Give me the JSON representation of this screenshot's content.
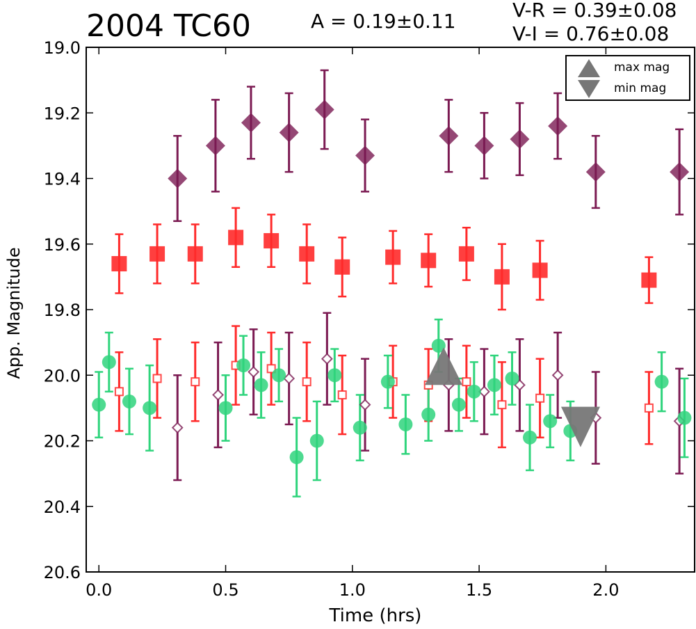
{
  "chart_data": {
    "type": "scatter",
    "title": "2004 TC60",
    "amplitude_label": "A  = 0.19±0.11",
    "color_vr_label": "V-R = 0.39±0.08",
    "color_vi_label": "V-I  = 0.76±0.08",
    "xlabel": "Time (hrs)",
    "ylabel": "App. Magnitude",
    "xlim": [
      -0.05,
      2.35
    ],
    "ylim": [
      20.6,
      19.0
    ],
    "y_inverted": true,
    "x_ticks": [
      "0.0",
      "0.5",
      "1.0",
      "1.5",
      "2.0"
    ],
    "y_ticks": [
      "19.0",
      "19.2",
      "19.4",
      "19.6",
      "19.8",
      "20.0",
      "20.2",
      "20.4",
      "20.6"
    ],
    "legend": [
      "max mag",
      "min mag"
    ],
    "legend_position": "top-right",
    "grid": false,
    "colors": {
      "I": "#7b1a52",
      "R": "#ff2a2a",
      "V": "#2fd47c",
      "extrema": "#777777"
    },
    "series": [
      {
        "band": "I",
        "marker": "filled-diamond",
        "x": [
          0.31,
          0.46,
          0.6,
          0.75,
          0.89,
          1.05,
          1.38,
          1.52,
          1.66,
          1.81,
          1.96,
          2.29
        ],
        "y": [
          19.4,
          19.3,
          19.23,
          19.26,
          19.19,
          19.33,
          19.27,
          19.3,
          19.28,
          19.24,
          19.38,
          19.38
        ],
        "err": [
          0.13,
          0.14,
          0.11,
          0.12,
          0.12,
          0.11,
          0.11,
          0.1,
          0.11,
          0.1,
          0.11,
          0.13
        ]
      },
      {
        "band": "R",
        "marker": "filled-square",
        "x": [
          0.08,
          0.23,
          0.38,
          0.54,
          0.68,
          0.82,
          0.96,
          1.16,
          1.3,
          1.45,
          1.59,
          1.74,
          2.17
        ],
        "y": [
          19.66,
          19.63,
          19.63,
          19.58,
          19.59,
          19.63,
          19.67,
          19.64,
          19.65,
          19.63,
          19.7,
          19.68,
          19.71
        ],
        "err": [
          0.09,
          0.09,
          0.09,
          0.09,
          0.08,
          0.09,
          0.09,
          0.08,
          0.08,
          0.08,
          0.1,
          0.09,
          0.07
        ]
      },
      {
        "band": "I",
        "marker": "open-diamond",
        "x": [
          0.31,
          0.47,
          0.61,
          0.75,
          0.9,
          1.05,
          1.38,
          1.52,
          1.66,
          1.81,
          1.96,
          2.29
        ],
        "y": [
          20.16,
          20.06,
          19.99,
          20.01,
          19.95,
          20.09,
          20.03,
          20.05,
          20.03,
          20.0,
          20.13,
          20.14
        ],
        "err": [
          0.16,
          0.16,
          0.13,
          0.14,
          0.14,
          0.14,
          0.14,
          0.13,
          0.14,
          0.13,
          0.14,
          0.16
        ]
      },
      {
        "band": "R",
        "marker": "open-square",
        "x": [
          0.08,
          0.23,
          0.38,
          0.54,
          0.68,
          0.82,
          0.96,
          1.16,
          1.3,
          1.45,
          1.59,
          1.74,
          2.17
        ],
        "y": [
          20.05,
          20.01,
          20.02,
          19.97,
          19.98,
          20.02,
          20.06,
          20.02,
          20.03,
          20.02,
          20.09,
          20.07,
          20.1
        ],
        "err": [
          0.12,
          0.12,
          0.12,
          0.12,
          0.11,
          0.12,
          0.12,
          0.11,
          0.11,
          0.11,
          0.13,
          0.12,
          0.11
        ]
      },
      {
        "band": "V",
        "marker": "filled-circle",
        "x": [
          0.0,
          0.04,
          0.12,
          0.2,
          0.5,
          0.57,
          0.64,
          0.71,
          0.78,
          0.86,
          0.93,
          1.03,
          1.14,
          1.21,
          1.3,
          1.34,
          1.42,
          1.48,
          1.56,
          1.63,
          1.7,
          1.78,
          1.86,
          2.22,
          2.31
        ],
        "y": [
          20.09,
          19.96,
          20.08,
          20.1,
          20.1,
          19.97,
          20.03,
          20.0,
          20.25,
          20.2,
          20.0,
          20.16,
          20.02,
          20.15,
          20.12,
          19.91,
          20.09,
          20.05,
          20.03,
          20.01,
          20.19,
          20.14,
          20.17,
          20.02,
          20.13
        ],
        "err": [
          0.1,
          0.09,
          0.1,
          0.13,
          0.1,
          0.09,
          0.1,
          0.08,
          0.12,
          0.12,
          0.08,
          0.1,
          0.08,
          0.09,
          0.08,
          0.08,
          0.08,
          0.09,
          0.09,
          0.08,
          0.1,
          0.08,
          0.09,
          0.09,
          0.12
        ]
      }
    ],
    "extrema": {
      "max_mag": {
        "x": 1.36,
        "y": 20.0
      },
      "min_mag": {
        "x": 1.9,
        "y": 20.16
      }
    }
  }
}
